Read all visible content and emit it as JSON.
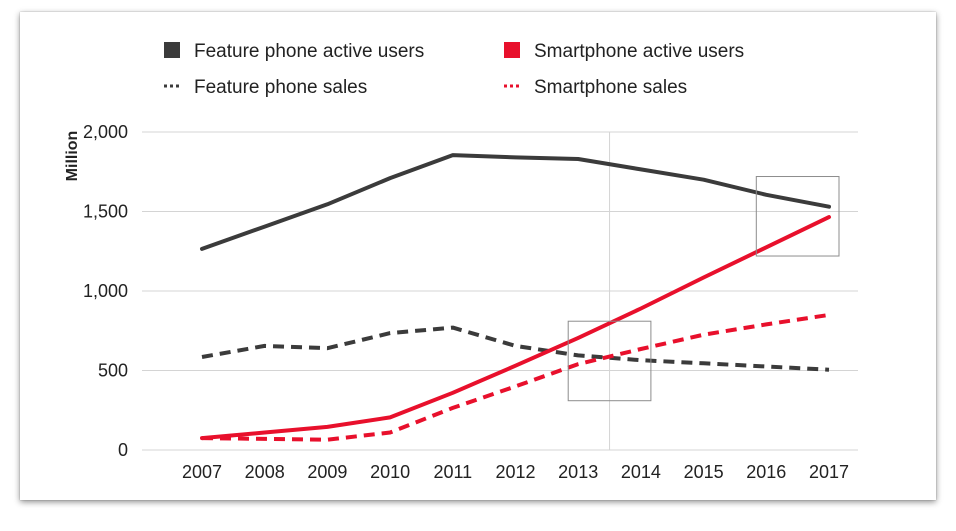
{
  "colors": {
    "feature": "#3b3b3b",
    "smartphone": "#e8102c",
    "grid": "#d4d4d4",
    "highlight": "#8c8c8c"
  },
  "chart_data": {
    "type": "line",
    "ylabel": "Million",
    "xlabel": "",
    "title": "",
    "ylim": [
      0,
      2000
    ],
    "yticks": [
      0,
      500,
      1000,
      1500,
      2000
    ],
    "ytick_labels": [
      "0",
      "500",
      "1,000",
      "1,500",
      "2,000"
    ],
    "x": [
      "2007",
      "2008",
      "2009",
      "2010",
      "2011",
      "2012",
      "2013",
      "2014",
      "2015",
      "2016",
      "2017"
    ],
    "grid": "horizontal",
    "legend_position": "top",
    "series": [
      {
        "name": "Feature phone active users",
        "style": "solid",
        "color": "#3b3b3b",
        "values": [
          1265,
          1405,
          1545,
          1710,
          1855,
          1840,
          1830,
          1765,
          1700,
          1605,
          1530
        ]
      },
      {
        "name": "Smartphone active users",
        "style": "solid",
        "color": "#e8102c",
        "values": [
          75,
          110,
          145,
          205,
          360,
          530,
          705,
          890,
          1085,
          1275,
          1465
        ]
      },
      {
        "name": "Feature phone sales",
        "style": "dotted",
        "color": "#3b3b3b",
        "values": [
          585,
          655,
          640,
          735,
          770,
          655,
          595,
          565,
          545,
          525,
          505
        ]
      },
      {
        "name": "Smartphone sales",
        "style": "dotted",
        "color": "#e8102c",
        "values": [
          75,
          70,
          65,
          110,
          265,
          400,
          540,
          635,
          725,
          790,
          850
        ]
      }
    ],
    "highlight_boxes": [
      {
        "x_start": "2013",
        "x_end": "2014",
        "y_min": 310,
        "y_max": 810
      },
      {
        "x_start": "2016",
        "x_end": "2017",
        "y_min": 1220,
        "y_max": 1720
      }
    ],
    "vertical_marker": {
      "x_between": [
        "2013",
        "2014"
      ]
    }
  }
}
